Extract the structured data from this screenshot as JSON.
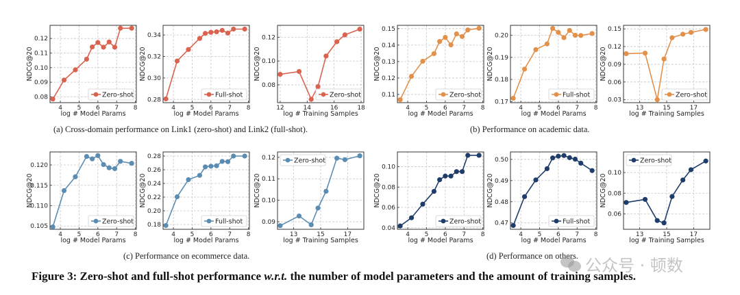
{
  "colors": {
    "red": "#d9634f",
    "orange": "#e3904a",
    "steel": "#5b8db3",
    "navy": "#1f3d6b"
  },
  "captions": {
    "a": "(a)  Cross-domain performance on Link1 (zero-shot) and Link2 (full-shot).",
    "b": "(b)  Performance on academic data.",
    "c": "(c)  Performance on ecommerce data.",
    "d": "(d)  Performance on others."
  },
  "figure_caption": {
    "prefix": "Figure 3: Zero-shot and full-shot performance ",
    "italic": "w.r.t.",
    "suffix": " the number of model parameters and the amount of training samples."
  },
  "watermark": {
    "text": "公众号 · 顿数",
    "icon": "wechat-icon"
  },
  "chart_data": [
    {
      "id": "a1",
      "type": "line",
      "color": "red",
      "xlabel": "log # Model Params",
      "ylabel": "NDCG@20",
      "legend": "Zero-shot",
      "legend_loc": "lower-right",
      "xlim": [
        3.45,
        8.05
      ],
      "ylim": [
        0.076,
        0.129
      ],
      "xticks": [
        4,
        5,
        6,
        7,
        8
      ],
      "yticks": [
        0.08,
        0.09,
        0.1,
        0.11,
        0.12
      ],
      "ytick_labels": [
        "0.08",
        "0.09",
        "0.10",
        "0.11",
        "0.12"
      ],
      "x": [
        3.6,
        4.2,
        4.8,
        5.4,
        5.7,
        6.0,
        6.3,
        6.6,
        6.9,
        7.2,
        7.8
      ],
      "y": [
        0.0785,
        0.0915,
        0.0985,
        0.1058,
        0.1142,
        0.1172,
        0.114,
        0.1176,
        0.114,
        0.127,
        0.127
      ]
    },
    {
      "id": "a2",
      "type": "line",
      "color": "red",
      "xlabel": "log # Model Params",
      "ylabel": "NDCG@20",
      "legend": "Full-shot",
      "legend_loc": "lower-right",
      "xlim": [
        3.45,
        8.05
      ],
      "ylim": [
        0.277,
        0.349
      ],
      "xticks": [
        4,
        5,
        6,
        7,
        8
      ],
      "yticks": [
        0.28,
        0.3,
        0.32,
        0.34
      ],
      "ytick_labels": [
        "0.28",
        "0.30",
        "0.32",
        "0.34"
      ],
      "x": [
        3.6,
        4.2,
        4.8,
        5.4,
        5.7,
        6.0,
        6.3,
        6.6,
        6.9,
        7.2,
        7.8
      ],
      "y": [
        0.2805,
        0.3158,
        0.3265,
        0.3368,
        0.3415,
        0.3425,
        0.343,
        0.3443,
        0.3418,
        0.3455,
        0.3455
      ]
    },
    {
      "id": "a3",
      "type": "line",
      "color": "red",
      "xlabel": "log # Training Samples",
      "ylabel": "NDCG@20",
      "legend": "Zero-shot",
      "legend_loc": "lower-right",
      "xlim": [
        11.8,
        18.2
      ],
      "ylim": [
        0.065,
        0.13
      ],
      "xticks": [
        12,
        14,
        16,
        18
      ],
      "yticks": [
        0.08,
        0.1,
        0.12
      ],
      "ytick_labels": [
        "0.08",
        "0.10",
        "0.12"
      ],
      "x": [
        12.0,
        13.4,
        14.3,
        14.8,
        15.4,
        16.2,
        16.8,
        17.9
      ],
      "y": [
        0.0888,
        0.0912,
        0.0678,
        0.0785,
        0.1042,
        0.1162,
        0.122,
        0.1268
      ]
    },
    {
      "id": "b1",
      "type": "line",
      "color": "orange",
      "xlabel": "log # Model Params",
      "ylabel": "NDCG@20",
      "legend": "Zero-shot",
      "legend_loc": "lower-right",
      "xlim": [
        3.45,
        8.05
      ],
      "ylim": [
        0.105,
        0.152
      ],
      "xticks": [
        4,
        5,
        6,
        7,
        8
      ],
      "yticks": [
        0.11,
        0.12,
        0.13,
        0.14,
        0.15
      ],
      "ytick_labels": [
        "0.11",
        "0.12",
        "0.13",
        "0.14",
        "0.15"
      ],
      "x": [
        3.6,
        4.2,
        4.8,
        5.4,
        5.7,
        6.0,
        6.3,
        6.6,
        6.9,
        7.2,
        7.8
      ],
      "y": [
        0.1068,
        0.121,
        0.1302,
        0.1348,
        0.1422,
        0.1447,
        0.1401,
        0.1468,
        0.1452,
        0.1492,
        0.1502
      ]
    },
    {
      "id": "b2",
      "type": "line",
      "color": "orange",
      "xlabel": "log # Model Params",
      "ylabel": "NDCG@20",
      "legend": "Full-shot",
      "legend_loc": "lower-right",
      "xlim": [
        3.45,
        8.05
      ],
      "ylim": [
        0.1695,
        0.2045
      ],
      "xticks": [
        4,
        5,
        6,
        7,
        8
      ],
      "yticks": [
        0.17,
        0.18,
        0.19,
        0.2
      ],
      "ytick_labels": [
        "0.17",
        "0.18",
        "0.19",
        "0.20"
      ],
      "x": [
        3.6,
        4.2,
        4.8,
        5.4,
        5.7,
        6.0,
        6.3,
        6.6,
        6.9,
        7.2,
        7.8
      ],
      "y": [
        0.1715,
        0.1847,
        0.1935,
        0.1961,
        0.2031,
        0.2013,
        0.1989,
        0.2022,
        0.2,
        0.1999,
        0.2008
      ]
    },
    {
      "id": "b3",
      "type": "line",
      "color": "orange",
      "xlabel": "log # Training Samples",
      "ylabel": "NDCG@20",
      "legend": "Zero-shot",
      "legend_loc": "lower-right",
      "xlim": [
        11.8,
        18.2
      ],
      "ylim": [
        0.025,
        0.156
      ],
      "xticks": [
        13,
        15,
        17
      ],
      "yticks": [
        0.03,
        0.06,
        0.09,
        0.12,
        0.15
      ],
      "ytick_labels": [
        "0.03",
        "0.06",
        "0.09",
        "0.12",
        "0.15"
      ],
      "x": [
        12.0,
        13.4,
        14.3,
        14.8,
        15.4,
        16.2,
        16.8,
        17.9
      ],
      "y": [
        0.108,
        0.109,
        0.03,
        0.099,
        0.135,
        0.141,
        0.144,
        0.149
      ]
    },
    {
      "id": "c1",
      "type": "line",
      "color": "steel",
      "xlabel": "log # Model Params",
      "ylabel": "NDCG@20",
      "legend": "Zero-shot",
      "legend_loc": "lower-right",
      "xlim": [
        3.45,
        8.05
      ],
      "ylim": [
        0.1042,
        0.1232
      ],
      "xticks": [
        4,
        5,
        6,
        7,
        8
      ],
      "yticks": [
        0.105,
        0.11,
        0.115,
        0.12
      ],
      "ytick_labels": [
        "0.105",
        "0.110",
        "0.115",
        "0.120"
      ],
      "x": [
        3.6,
        4.2,
        4.8,
        5.4,
        5.7,
        6.0,
        6.3,
        6.6,
        6.9,
        7.2,
        7.8
      ],
      "y": [
        0.1048,
        0.1137,
        0.1171,
        0.1221,
        0.1215,
        0.1223,
        0.1201,
        0.1193,
        0.1191,
        0.1209,
        0.1204
      ]
    },
    {
      "id": "c2",
      "type": "line",
      "color": "steel",
      "xlabel": "log # Model Params",
      "ylabel": "NDCG@20",
      "legend": "Full-shot",
      "legend_loc": "lower-right",
      "xlim": [
        3.45,
        8.05
      ],
      "ylim": [
        0.173,
        0.286
      ],
      "xticks": [
        4,
        5,
        6,
        7,
        8
      ],
      "yticks": [
        0.18,
        0.2,
        0.22,
        0.24,
        0.26,
        0.28
      ],
      "ytick_labels": [
        "0.18",
        "0.20",
        "0.22",
        "0.24",
        "0.26",
        "0.28"
      ],
      "x": [
        3.6,
        4.2,
        4.8,
        5.4,
        5.7,
        6.0,
        6.3,
        6.6,
        6.9,
        7.2,
        7.8
      ],
      "y": [
        0.1785,
        0.2205,
        0.2455,
        0.2518,
        0.2642,
        0.2652,
        0.2658,
        0.2722,
        0.2718,
        0.28,
        0.28
      ]
    },
    {
      "id": "c3",
      "type": "line",
      "color": "steel",
      "xlabel": "log # Training Samples",
      "ylabel": "NDCG@20",
      "legend": "Zero-shot",
      "legend_loc": "upper-left",
      "xlim": [
        11.8,
        18.2
      ],
      "ylim": [
        0.0865,
        0.1225
      ],
      "xticks": [
        13,
        15,
        17
      ],
      "yticks": [
        0.09,
        0.1,
        0.11,
        0.12
      ],
      "ytick_labels": [
        "0.09",
        "0.10",
        "0.11",
        "0.12"
      ],
      "x": [
        12.0,
        13.4,
        14.3,
        14.8,
        15.4,
        16.2,
        16.8,
        17.9
      ],
      "y": [
        0.0882,
        0.0927,
        0.0886,
        0.0964,
        0.1042,
        0.1196,
        0.1189,
        0.1207
      ]
    },
    {
      "id": "d1",
      "type": "line",
      "color": "navy",
      "xlabel": "log # Model Params",
      "ylabel": "NDCG@20",
      "legend": "Zero-shot",
      "legend_loc": "lower-right",
      "xlim": [
        3.45,
        8.05
      ],
      "ylim": [
        0.0385,
        0.1145
      ],
      "xticks": [
        4,
        5,
        6,
        7,
        8
      ],
      "yticks": [
        0.04,
        0.06,
        0.08,
        0.1
      ],
      "ytick_labels": [
        "0.04",
        "0.06",
        "0.08",
        "0.10"
      ],
      "x": [
        3.6,
        4.2,
        4.8,
        5.4,
        5.7,
        6.0,
        6.3,
        6.6,
        6.9,
        7.2,
        7.8
      ],
      "y": [
        0.0418,
        0.0498,
        0.0632,
        0.0758,
        0.0872,
        0.0908,
        0.0908,
        0.0952,
        0.0952,
        0.1112,
        0.1112
      ]
    },
    {
      "id": "d2",
      "type": "line",
      "color": "navy",
      "xlabel": "log # Model Params",
      "ylabel": "NDCG@20",
      "legend": "Full-shot",
      "legend_loc": "lower-right",
      "xlim": [
        3.45,
        8.05
      ],
      "ylim": [
        0.467,
        0.5035
      ],
      "xticks": [
        4,
        5,
        6,
        7,
        8
      ],
      "yticks": [
        0.47,
        0.48,
        0.49,
        0.5
      ],
      "ytick_labels": [
        "0.47",
        "0.48",
        "0.49",
        "0.50"
      ],
      "x": [
        3.6,
        4.2,
        4.8,
        5.4,
        5.7,
        6.0,
        6.3,
        6.6,
        6.9,
        7.2,
        7.8
      ],
      "y": [
        0.4688,
        0.4824,
        0.4903,
        0.4956,
        0.5007,
        0.5015,
        0.5018,
        0.5008,
        0.5001,
        0.4982,
        0.4947
      ]
    },
    {
      "id": "d3",
      "type": "line",
      "color": "navy",
      "xlabel": "log # Training Samples",
      "ylabel": "NDCG@20",
      "legend": "Zero-shot",
      "legend_loc": "upper-left",
      "xlim": [
        11.8,
        18.2
      ],
      "ylim": [
        0.045,
        0.12
      ],
      "xticks": [
        13,
        15,
        17
      ],
      "yticks": [
        0.06,
        0.08,
        0.1
      ],
      "ytick_labels": [
        "0.06",
        "0.08",
        "0.10"
      ],
      "x": [
        12.0,
        13.4,
        14.3,
        14.8,
        15.4,
        16.2,
        16.8,
        17.9
      ],
      "y": [
        0.071,
        0.074,
        0.0535,
        0.0512,
        0.0768,
        0.0928,
        0.1028,
        0.1112
      ]
    }
  ]
}
